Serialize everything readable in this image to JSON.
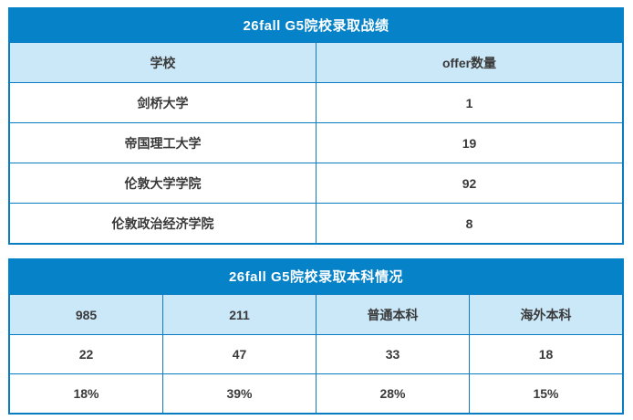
{
  "page": {
    "background": "#ffffff"
  },
  "colors": {
    "title_bar_blue": "#0682c8",
    "border_blue": "#0a7cc1",
    "header_row_bg": "#cbe8f9",
    "title_text": "#ffffff",
    "cell_text": "#3a3a3a"
  },
  "chart_data": [
    {
      "type": "table",
      "title": "26fall G5院校录取战绩",
      "columns": [
        "学校",
        "offer数量"
      ],
      "rows": [
        [
          "剑桥大学",
          "1"
        ],
        [
          "帝国理工大学",
          "19"
        ],
        [
          "伦敦大学学院",
          "92"
        ],
        [
          "伦敦政治经济学院",
          "8"
        ]
      ]
    },
    {
      "type": "table",
      "title": "26fall G5院校录取本科情况",
      "columns": [
        "985",
        "211",
        "普通本科",
        "海外本科"
      ],
      "rows": [
        [
          "22",
          "47",
          "33",
          "18"
        ],
        [
          "18%",
          "39%",
          "28%",
          "15%"
        ]
      ]
    }
  ]
}
